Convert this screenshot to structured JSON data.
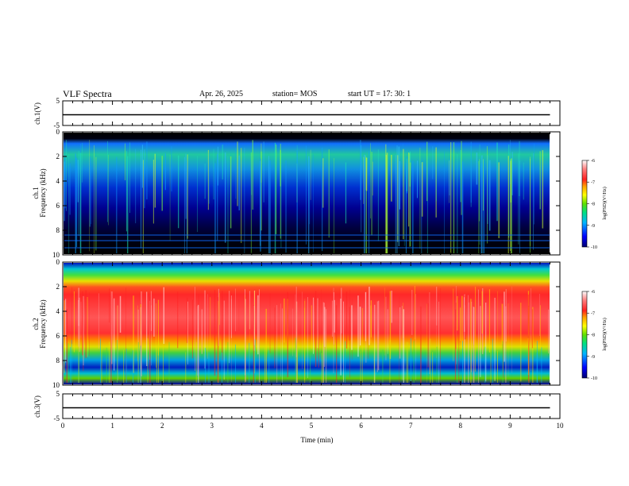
{
  "header": {
    "title": "VLF Spectra",
    "date": "Apr. 26, 2025",
    "station": "station= MOS",
    "start_ut": "start  UT  =   17: 30: 1"
  },
  "chart_data": [
    {
      "type": "line",
      "panel": "ch1-voltage",
      "ylabel": "ch.1(V)",
      "ylim": [
        -5,
        5
      ],
      "yticks": [
        "5",
        "-5"
      ],
      "xlim": [
        0,
        10
      ],
      "series": [
        {
          "x": [
            0,
            9.8
          ],
          "y": [
            0,
            0
          ]
        }
      ]
    },
    {
      "type": "heatmap",
      "panel": "ch1-spectrogram",
      "ylabel": [
        "ch.1",
        "Frequency (kHz)"
      ],
      "ylim": [
        0,
        10
      ],
      "yticks": [
        "0",
        "2",
        "4",
        "6",
        "8",
        "10"
      ],
      "xlim": [
        0,
        10
      ],
      "data_extent_min": 9.8,
      "colorbar": {
        "label": "log(PSD)(V²/Hz)",
        "range": [
          -10,
          -6
        ],
        "ticks": [
          "-6",
          "-7",
          "-8",
          "-9",
          "-10"
        ]
      }
    },
    {
      "type": "heatmap",
      "panel": "ch2-spectrogram",
      "ylabel": [
        "ch.2",
        "Frequency (kHz)"
      ],
      "ylim": [
        0,
        10
      ],
      "yticks": [
        "0",
        "2",
        "4",
        "6",
        "8",
        "10"
      ],
      "xlim": [
        0,
        10
      ],
      "data_extent_min": 9.8,
      "colorbar": {
        "label": "log(PSD)(V²/Hz)",
        "range": [
          -10,
          -6
        ],
        "ticks": [
          "-6",
          "-7",
          "-8",
          "-9",
          "-10"
        ]
      }
    },
    {
      "type": "line",
      "panel": "ch3-voltage",
      "ylabel": "ch.3(V)",
      "ylim": [
        -5,
        5
      ],
      "yticks": [
        "5",
        "-5"
      ],
      "xlim": [
        0,
        10
      ],
      "xlabel": "Time  (min)",
      "xticks": [
        "0",
        "1",
        "2",
        "3",
        "4",
        "5",
        "6",
        "7",
        "8",
        "9",
        "10"
      ],
      "series": [
        {
          "x": [
            0,
            9.8
          ],
          "y": [
            0,
            0
          ]
        }
      ]
    }
  ]
}
